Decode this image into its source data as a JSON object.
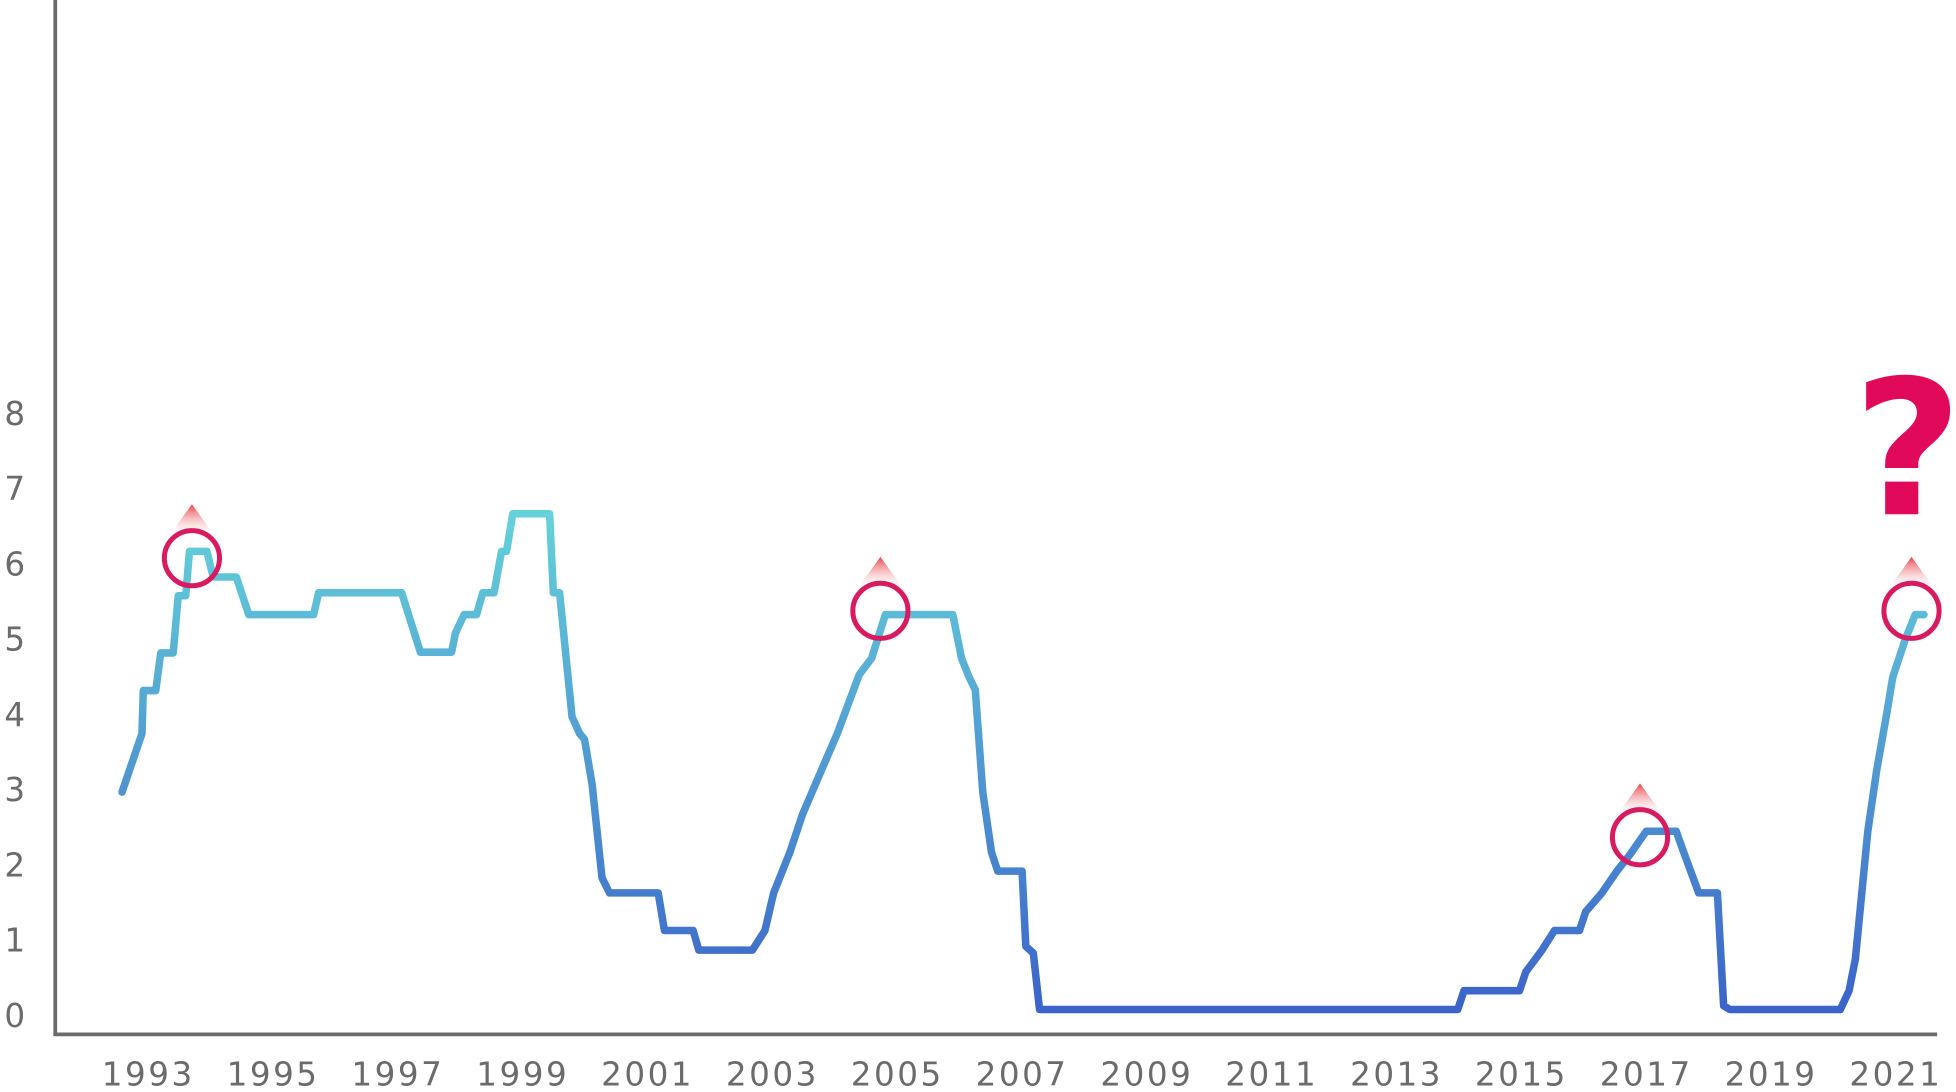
{
  "chart_data": {
    "type": "line",
    "annotation": "?",
    "xlim": [
      1991.51,
      2021.66
    ],
    "ylim": [
      -0.25,
      13.5
    ],
    "xticks": [
      1993,
      1995,
      1997,
      1999,
      2001,
      2003,
      2005,
      2007,
      2009,
      2011,
      2013,
      2015,
      2017,
      2019,
      2021
    ],
    "yticks": [
      0,
      1,
      2,
      3,
      4,
      5,
      6,
      7,
      8
    ],
    "gradient": [
      "#66d4da",
      "#3b62c9"
    ],
    "marker_color": "#d81b60",
    "annotation_color": "#e0095a",
    "series": [
      {
        "x": [
          1992.58,
          1992.9,
          1992.92,
          1993.12,
          1993.2,
          1993.4,
          1993.48,
          1993.6,
          1993.66,
          1993.94,
          1994.04,
          1994.41,
          1994.61,
          1995.65,
          1995.73,
          1997.06,
          1997.36,
          1997.86,
          1997.92,
          1998.06,
          1998.26,
          1998.36,
          1998.54,
          1998.66,
          1998.74,
          1998.84,
          1999.43,
          1999.49,
          1999.59,
          1999.79,
          1999.91,
          1999.99,
          2000.11,
          2000.27,
          2000.39,
          2001.17,
          2001.27,
          2001.73,
          2001.82,
          2002.68,
          2002.88,
          2003.02,
          2003.28,
          2003.48,
          2003.78,
          2004.04,
          2004.39,
          2004.59,
          2004.81,
          2005.89,
          2006.03,
          2006.15,
          2006.25,
          2006.37,
          2006.51,
          2006.61,
          2007.0,
          2007.06,
          2007.18,
          2007.28,
          2013.98,
          2014.08,
          2014.97,
          2015.07,
          2015.33,
          2015.53,
          2015.93,
          2016.03,
          2016.29,
          2016.53,
          2016.73,
          2017.0,
          2017.48,
          2017.6,
          2017.84,
          2018.14,
          2018.24,
          2018.34,
          2020.11,
          2020.25,
          2020.35,
          2020.55,
          2020.69,
          2020.85,
          2020.95,
          2021.15,
          2021.31,
          2021.45
        ],
        "values": [
          2.97,
          3.75,
          4.32,
          4.32,
          4.82,
          4.82,
          5.58,
          5.58,
          6.17,
          6.17,
          5.83,
          5.83,
          5.33,
          5.33,
          5.62,
          5.62,
          4.83,
          4.83,
          5.08,
          5.33,
          5.33,
          5.62,
          5.62,
          6.17,
          6.17,
          6.67,
          6.67,
          5.62,
          5.62,
          3.97,
          3.75,
          3.67,
          3.08,
          1.83,
          1.63,
          1.63,
          1.13,
          1.13,
          0.87,
          0.87,
          1.13,
          1.63,
          2.17,
          2.67,
          3.25,
          3.75,
          4.53,
          4.75,
          5.33,
          5.33,
          4.75,
          4.5,
          4.33,
          2.97,
          2.17,
          1.92,
          1.92,
          0.92,
          0.83,
          0.08,
          0.08,
          0.33,
          0.33,
          0.58,
          0.87,
          1.13,
          1.13,
          1.38,
          1.63,
          1.92,
          2.13,
          2.45,
          2.45,
          2.17,
          1.63,
          1.63,
          0.13,
          0.08,
          0.08,
          0.33,
          0.75,
          2.45,
          3.25,
          4.0,
          4.5,
          5.0,
          5.33,
          5.33
        ]
      }
    ],
    "markers": {
      "x": [
        1993.7,
        2004.73,
        2016.9,
        2021.25
      ],
      "values": [
        6.08,
        5.38,
        2.37,
        5.38
      ]
    }
  }
}
